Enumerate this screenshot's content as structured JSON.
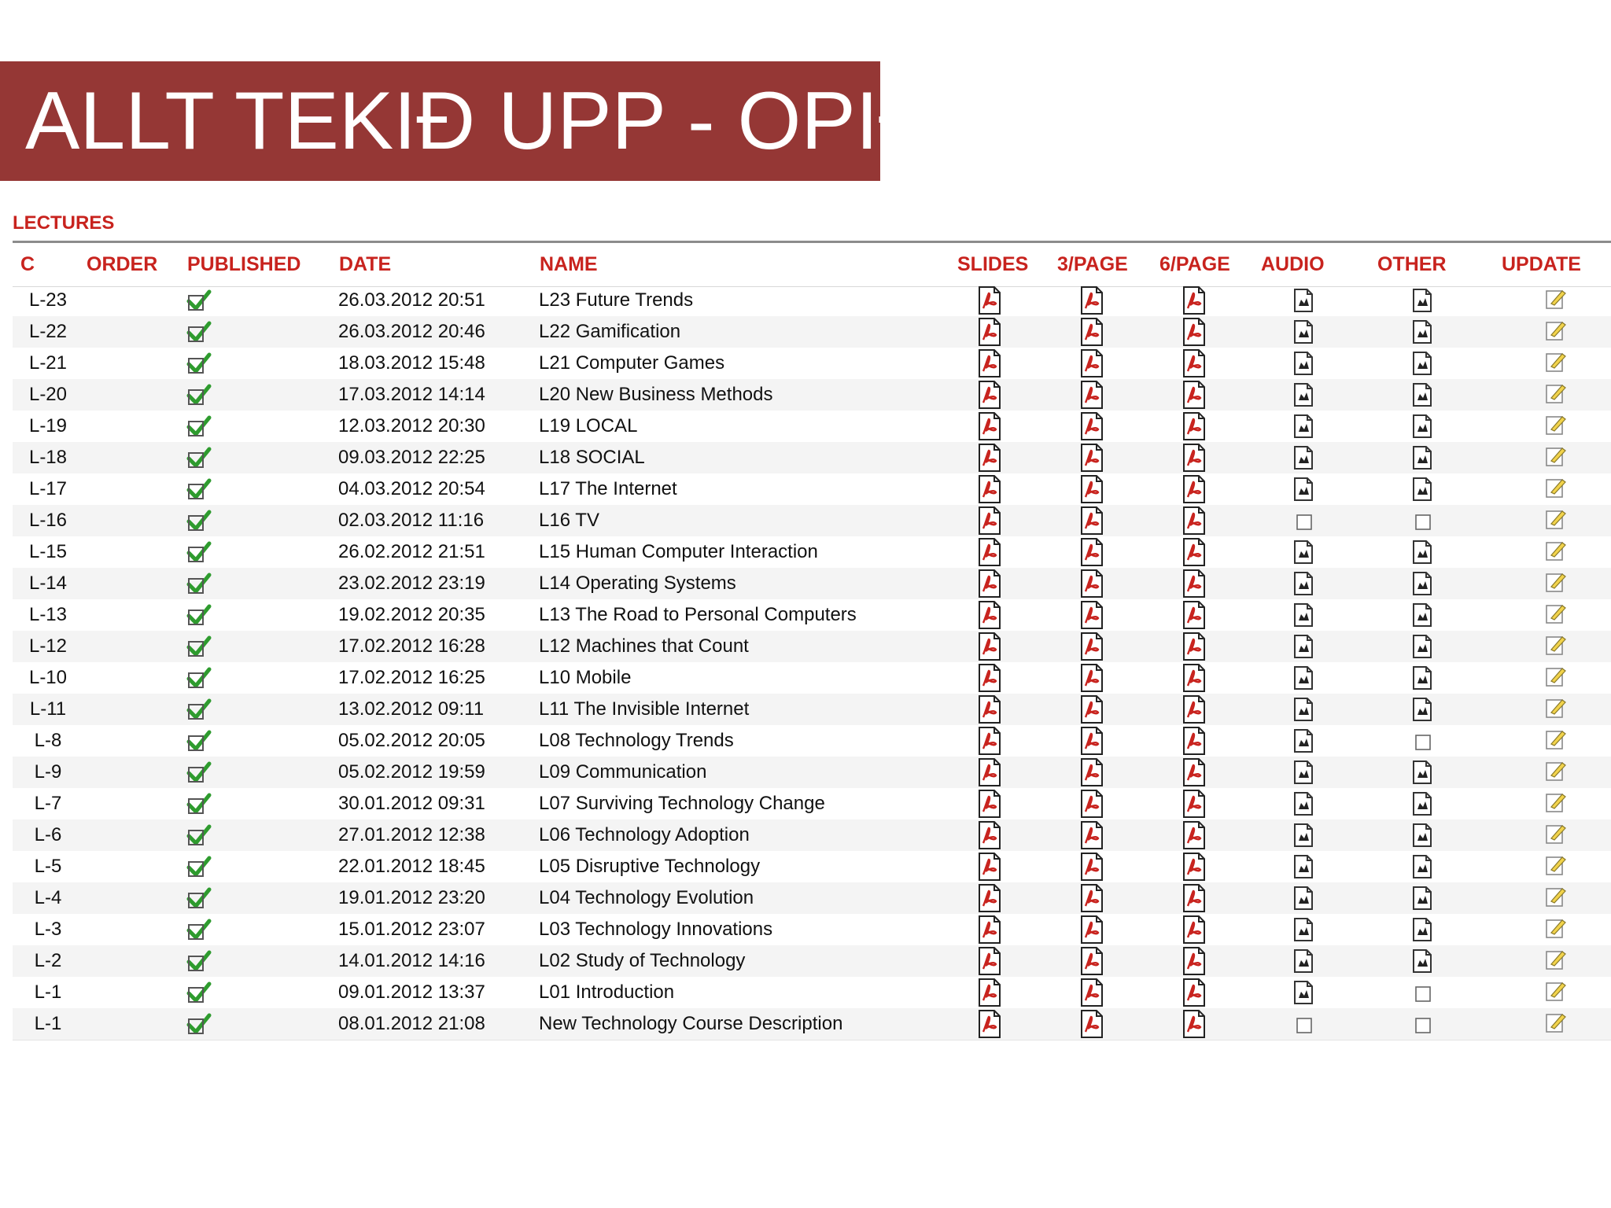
{
  "banner": {
    "title": "ALLT TEKIÐ UPP - OPIÐ"
  },
  "section": {
    "label": "LECTURES"
  },
  "columns": {
    "c": "C",
    "order": "ORDER",
    "published": "PUBLISHED",
    "date": "DATE",
    "name": "NAME",
    "slides": "SLIDES",
    "page3": "3/PAGE",
    "page6": "6/PAGE",
    "audio": "AUDIO",
    "other": "OTHER",
    "update": "UPDATE"
  },
  "icons": {
    "published": "green-checkmark-icon",
    "slides": "pdf-icon",
    "audio": "audio-file-icon",
    "other": "file-icon",
    "missing": "empty-checkbox-icon",
    "update": "edit-note-icon"
  },
  "colors": {
    "banner": "#953735",
    "header_text": "#c8231e",
    "check": "#2e9b2e"
  },
  "rows": [
    {
      "code": "L-23",
      "date": "26.03.2012 20:51",
      "name": "L23 Future Trends",
      "audio": true,
      "other": true
    },
    {
      "code": "L-22",
      "date": "26.03.2012 20:46",
      "name": "L22 Gamification",
      "audio": true,
      "other": true
    },
    {
      "code": "L-21",
      "date": "18.03.2012 15:48",
      "name": "L21 Computer Games",
      "audio": true,
      "other": true
    },
    {
      "code": "L-20",
      "date": "17.03.2012 14:14",
      "name": "L20 New Business Methods",
      "audio": true,
      "other": true
    },
    {
      "code": "L-19",
      "date": "12.03.2012 20:30",
      "name": "L19 LOCAL",
      "audio": true,
      "other": true
    },
    {
      "code": "L-18",
      "date": "09.03.2012 22:25",
      "name": "L18 SOCIAL",
      "audio": true,
      "other": true
    },
    {
      "code": "L-17",
      "date": "04.03.2012 20:54",
      "name": "L17 The Internet",
      "audio": true,
      "other": true
    },
    {
      "code": "L-16",
      "date": "02.03.2012 11:16",
      "name": "L16 TV",
      "audio": false,
      "other": false
    },
    {
      "code": "L-15",
      "date": "26.02.2012 21:51",
      "name": "L15 Human Computer Interaction",
      "audio": true,
      "other": true
    },
    {
      "code": "L-14",
      "date": "23.02.2012 23:19",
      "name": "L14 Operating Systems",
      "audio": true,
      "other": true
    },
    {
      "code": "L-13",
      "date": "19.02.2012 20:35",
      "name": "L13 The Road to Personal Computers",
      "audio": true,
      "other": true
    },
    {
      "code": "L-12",
      "date": "17.02.2012 16:28",
      "name": "L12 Machines that Count",
      "audio": true,
      "other": true
    },
    {
      "code": "L-10",
      "date": "17.02.2012 16:25",
      "name": "L10 Mobile",
      "audio": true,
      "other": true
    },
    {
      "code": "L-11",
      "date": "13.02.2012 09:11",
      "name": "L11 The Invisible Internet",
      "audio": true,
      "other": true
    },
    {
      "code": "L-8",
      "date": "05.02.2012 20:05",
      "name": "L08 Technology Trends",
      "audio": true,
      "other": false
    },
    {
      "code": "L-9",
      "date": "05.02.2012 19:59",
      "name": "L09 Communication",
      "audio": true,
      "other": true
    },
    {
      "code": "L-7",
      "date": "30.01.2012 09:31",
      "name": "L07 Surviving Technology Change",
      "audio": true,
      "other": true
    },
    {
      "code": "L-6",
      "date": "27.01.2012 12:38",
      "name": "L06 Technology Adoption",
      "audio": true,
      "other": true
    },
    {
      "code": "L-5",
      "date": "22.01.2012 18:45",
      "name": "L05 Disruptive Technology",
      "audio": true,
      "other": true
    },
    {
      "code": "L-4",
      "date": "19.01.2012 23:20",
      "name": "L04 Technology Evolution",
      "audio": true,
      "other": true
    },
    {
      "code": "L-3",
      "date": "15.01.2012 23:07",
      "name": "L03 Technology Innovations",
      "audio": true,
      "other": true
    },
    {
      "code": "L-2",
      "date": "14.01.2012 14:16",
      "name": "L02 Study of Technology",
      "audio": true,
      "other": true
    },
    {
      "code": "L-1",
      "date": "09.01.2012 13:37",
      "name": "L01 Introduction",
      "audio": true,
      "other": false
    },
    {
      "code": "L-1",
      "date": "08.01.2012 21:08",
      "name": "New Technology Course Description",
      "audio": false,
      "other": false
    }
  ]
}
